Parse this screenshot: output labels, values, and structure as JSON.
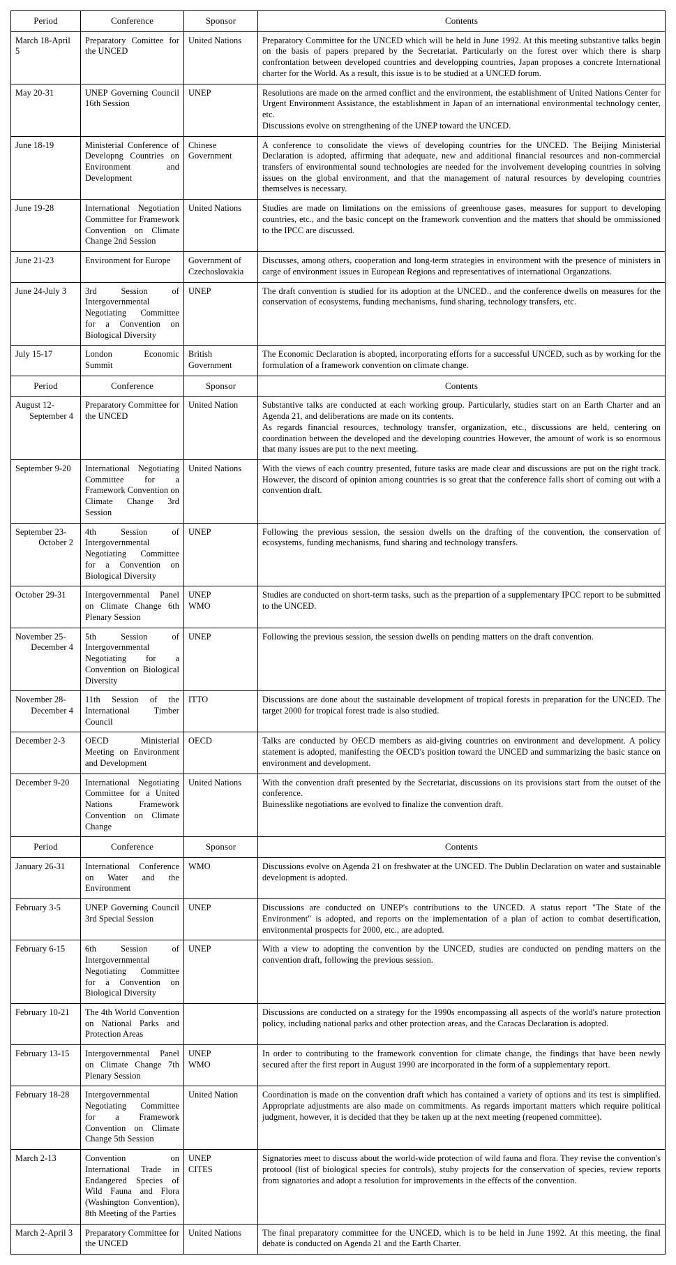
{
  "columns": {
    "period": "Period",
    "conference": "Conference",
    "sponsor": "Sponsor",
    "contents": "Contents"
  },
  "columnWidths": {
    "period": 100,
    "conference": 148,
    "sponsor": 106
  },
  "fontFamily": "Times New Roman",
  "fontSizePt": 9,
  "colors": {
    "bg": "#ffffff",
    "fg": "#000000",
    "border": "#000000"
  },
  "sections": [
    {
      "rows": [
        {
          "period": "March 18-April 5",
          "conference": "Preparatory Comittee for the UNCED",
          "sponsor": "United Nations",
          "contents": "Preparatory Committee for the UNCED which will be held in June 1992. At this meeting substantive talks begin on the basis of papers prepared by the Secretariat. Particularly on the forest over which there is sharp confrontation between developed countries and developping countries, Japan proposes a concrete International charter for the World. As a result, this issue is to be studied at a UNCED forum."
        },
        {
          "period": "May 20-31",
          "conference": "UNEP Governing Council 16th Session",
          "sponsor": "UNEP",
          "contents": "Resolutions are made on the armed conflict and the environment, the establishment of United Nations Center for Urgent Environment Assistance, the establishment in Japan of an international environmental technology center, etc.\nDiscussions evolve on strengthening of the UNEP toward the UNCED."
        },
        {
          "period": "June 18-19",
          "conference": "Ministerial Conference of Developng Countries on Environment and Development",
          "sponsor": "Chinese Government",
          "contents": "A conference to consolidate the views of developing countries for the UNCED. The Beijing Ministerial Declaration is adopted, affirming that adequate, new and additional financial resources and non-commercial transfers of environmental sound technologies are needed for the involvement developing countries in solving issues on the global environment, and that the management of natural resources by developing countries themselves is necessary."
        },
        {
          "period": "June 19-28",
          "conference": "International Negotiation Committee for Framework Convention on Climate Change 2nd Session",
          "sponsor": "United Nations",
          "contents": "Studies are made on limitations on the emissions of greenhouse gases, measures for support to developing countries, etc., and the basic concept on the framework convention and the matters that should be ommissioned to the IPCC are discussed."
        },
        {
          "period": "June 21-23",
          "conference": "Environment for Europe",
          "sponsor": "Government of Czechoslovakia",
          "contents": "Discusses, among others, cooperation and long-term strategies in environment with the presence of ministers in carge of environment issues in European Regions and representatives of international Organzations."
        },
        {
          "period": "June 24-July 3",
          "conference": "3rd Session of Intergovernmental Negotiating Committee for a Convention on Biological Diversity",
          "sponsor": "UNEP",
          "contents": "The draft convention is studied for its adoption at the UNCED., and the conference dwells on measures for the conservation of ecosystems, funding mechanisms, fund sharing, technology transfers, etc."
        },
        {
          "period": "July 15-17",
          "conference": "London Economic Summit",
          "sponsor": "British Government",
          "contents": "The Economic Declaration is abopted, incorporating efforts for a successful UNCED, such as by working for the formulation of a framework convention on climate change."
        }
      ]
    },
    {
      "rows": [
        {
          "period": "August 12-",
          "period2": "September 4",
          "conference": "Preparatory Committee for the UNCED",
          "sponsor": "United Nation",
          "contents": "Substantive talks are conducted at each working group. Particularly, studies start on an Earth Charter and an Agenda 21, and deliberations are made on its contents.\nAs regards financial resources, technology transfer, organization, etc., discussions are held, centering on coordination between the developed and the developing countries However, the amount of work is so enormous that many issues are put to the next meeting."
        },
        {
          "period": "September 9-20",
          "conference": "International Negotiating Committee for a Framework Convention on Climate Change 3rd Session",
          "sponsor": "United Nations",
          "contents": "With the views of each country presented, future tasks are made clear and discussions are put on the right track. However, the discord of opinion among countries is so great that the conference falls short of coming out with a convention draft."
        },
        {
          "period": "September 23-",
          "period2": "October 2",
          "conference": "4th Session of Intergovernmental Negotiating Committee for a Convention on Biological Diversity",
          "sponsor": "UNEP",
          "contents": "Following the previous session, the session dwells on the drafting of the convention, the conservation of ecosystems, funding mechanisms, fund sharing and technology transfers."
        },
        {
          "period": "October 29-31",
          "conference": "Intergovernmental Panel on Climate Change 6th Plenary Session",
          "sponsor": "UNEP\nWMO",
          "contents": "Studies are conducted on short-term tasks, such as the prepartion of a supplementary IPCC report to be submitted to the UNCED."
        },
        {
          "period": "November 25-",
          "period2": "December 4",
          "conference": "5th Session of Intergovernmental Negotiating for a Convention on Biological Diversity",
          "sponsor": "UNEP",
          "contents": "Following the previous session, the session dwells on pending matters on the draft convention."
        },
        {
          "period": "November 28-",
          "period2": "December 4",
          "conference": "11th Session of the International Timber Council",
          "sponsor": "ITTO",
          "contents": "Discussions are done about the sustainable development of tropical forests in preparation for the UNCED. The target 2000 for tropical forest trade is also studied."
        },
        {
          "period": "December 2-3",
          "conference": "OECD Ministerial Meeting on Environment and Development",
          "sponsor": "OECD",
          "contents": "Talks are conducted by OECD members as aid-giving countries on environment and development. A policy statement is adopted, manifesting the OECD's position toward the UNCED and summarizing the basic stance on environment and development."
        },
        {
          "period": "December 9-20",
          "conference": "International Negotiating Committee for a United Nations Framework Convention on Climate Change",
          "sponsor": "United Nations",
          "contents": "With the convention draft presented by the Secretariat, discussions on its provisions start from the outset of the conference.\nBuinesslike negotiations are evolved to finalize the convention draft."
        }
      ]
    },
    {
      "rows": [
        {
          "period": "January 26-31",
          "conference": "International Conference on Water and the Environment",
          "sponsor": "WMO",
          "contents": "Discussions evolve on Agenda 21 on freshwater at the UNCED. The Dublin Declaration on water and sustainable development is adopted."
        },
        {
          "period": "February 3-5",
          "conference": "UNEP Governing Council 3rd Special Session",
          "sponsor": "UNEP",
          "contents": "Discussions are conducted on UNEP's contributions to the UNCED. A status report \"The State of the Environment\" is adopted, and reports on the implementation of a plan of action to combat desertification, environmental prospects for 2000, etc., are adopted."
        },
        {
          "period": "February 6-15",
          "conference": "6th Session of Intergovernmental Negotiating Committee for a Convention on Biological Diversity",
          "sponsor": "UNEP",
          "contents": "With a view to adopting the convention by the UNCED, studies are conducted on pending matters on the convention draft, following the previous session."
        },
        {
          "period": "February 10-21",
          "conference": "The 4th World Convention on National Parks and Protection Areas",
          "sponsor": "",
          "contents": "Discussions are conducted on a strategy for the 1990s encompassing all aspects of the world's nature protection policy, including national parks and other protection areas, and the Caracas Declaration is adopted."
        },
        {
          "period": "February 13-15",
          "conference": "Intergovernmental Panel on Climate Change 7th Plenary Session",
          "sponsor": "UNEP\nWMO",
          "contents": "In order to contributing to the framework convention for climate change, the findings that have been newly secured after the first report in August 1990 are incorporated in the form of a supplementary report."
        },
        {
          "period": "February 18-28",
          "conference": "Intergovernmental Negotiating Committee for a Framework Convention on Climate Change 5th Session",
          "sponsor": "United Nation",
          "contents": "Coordination is made on the convention draft which has contained a variety of options and its test is simplified. Appropriate adjustments are also made on commitments. As regards important matters which require political judgment, however, it is decided that they be taken up at the next meeting (reopened committee)."
        },
        {
          "period": "March 2-13",
          "conference": "Convention on International Trade in Endangered Species of Wild Fauna and Flora (Washington Convention), 8th Meeting of the Parties",
          "sponsor": "UNEP\nCITES",
          "contents": "Signatories meet to discuss about the world-wide protection of wild fauna and flora. They revise the convention's protoool (list of biological species for controls), stuby projects for the conservation of species, review reports from signatories and adopt a resolution for improvements in the effects of the convention."
        },
        {
          "period": "March 2-April 3",
          "conference": "Preparatory Committee for the UNCED",
          "sponsor": "United Nations",
          "contents": "The final preparatory committee for the UNCED, which is to be held in June 1992. At this meeting, the final debate is conducted on Agenda 21 and the Earth Charter."
        }
      ]
    }
  ]
}
